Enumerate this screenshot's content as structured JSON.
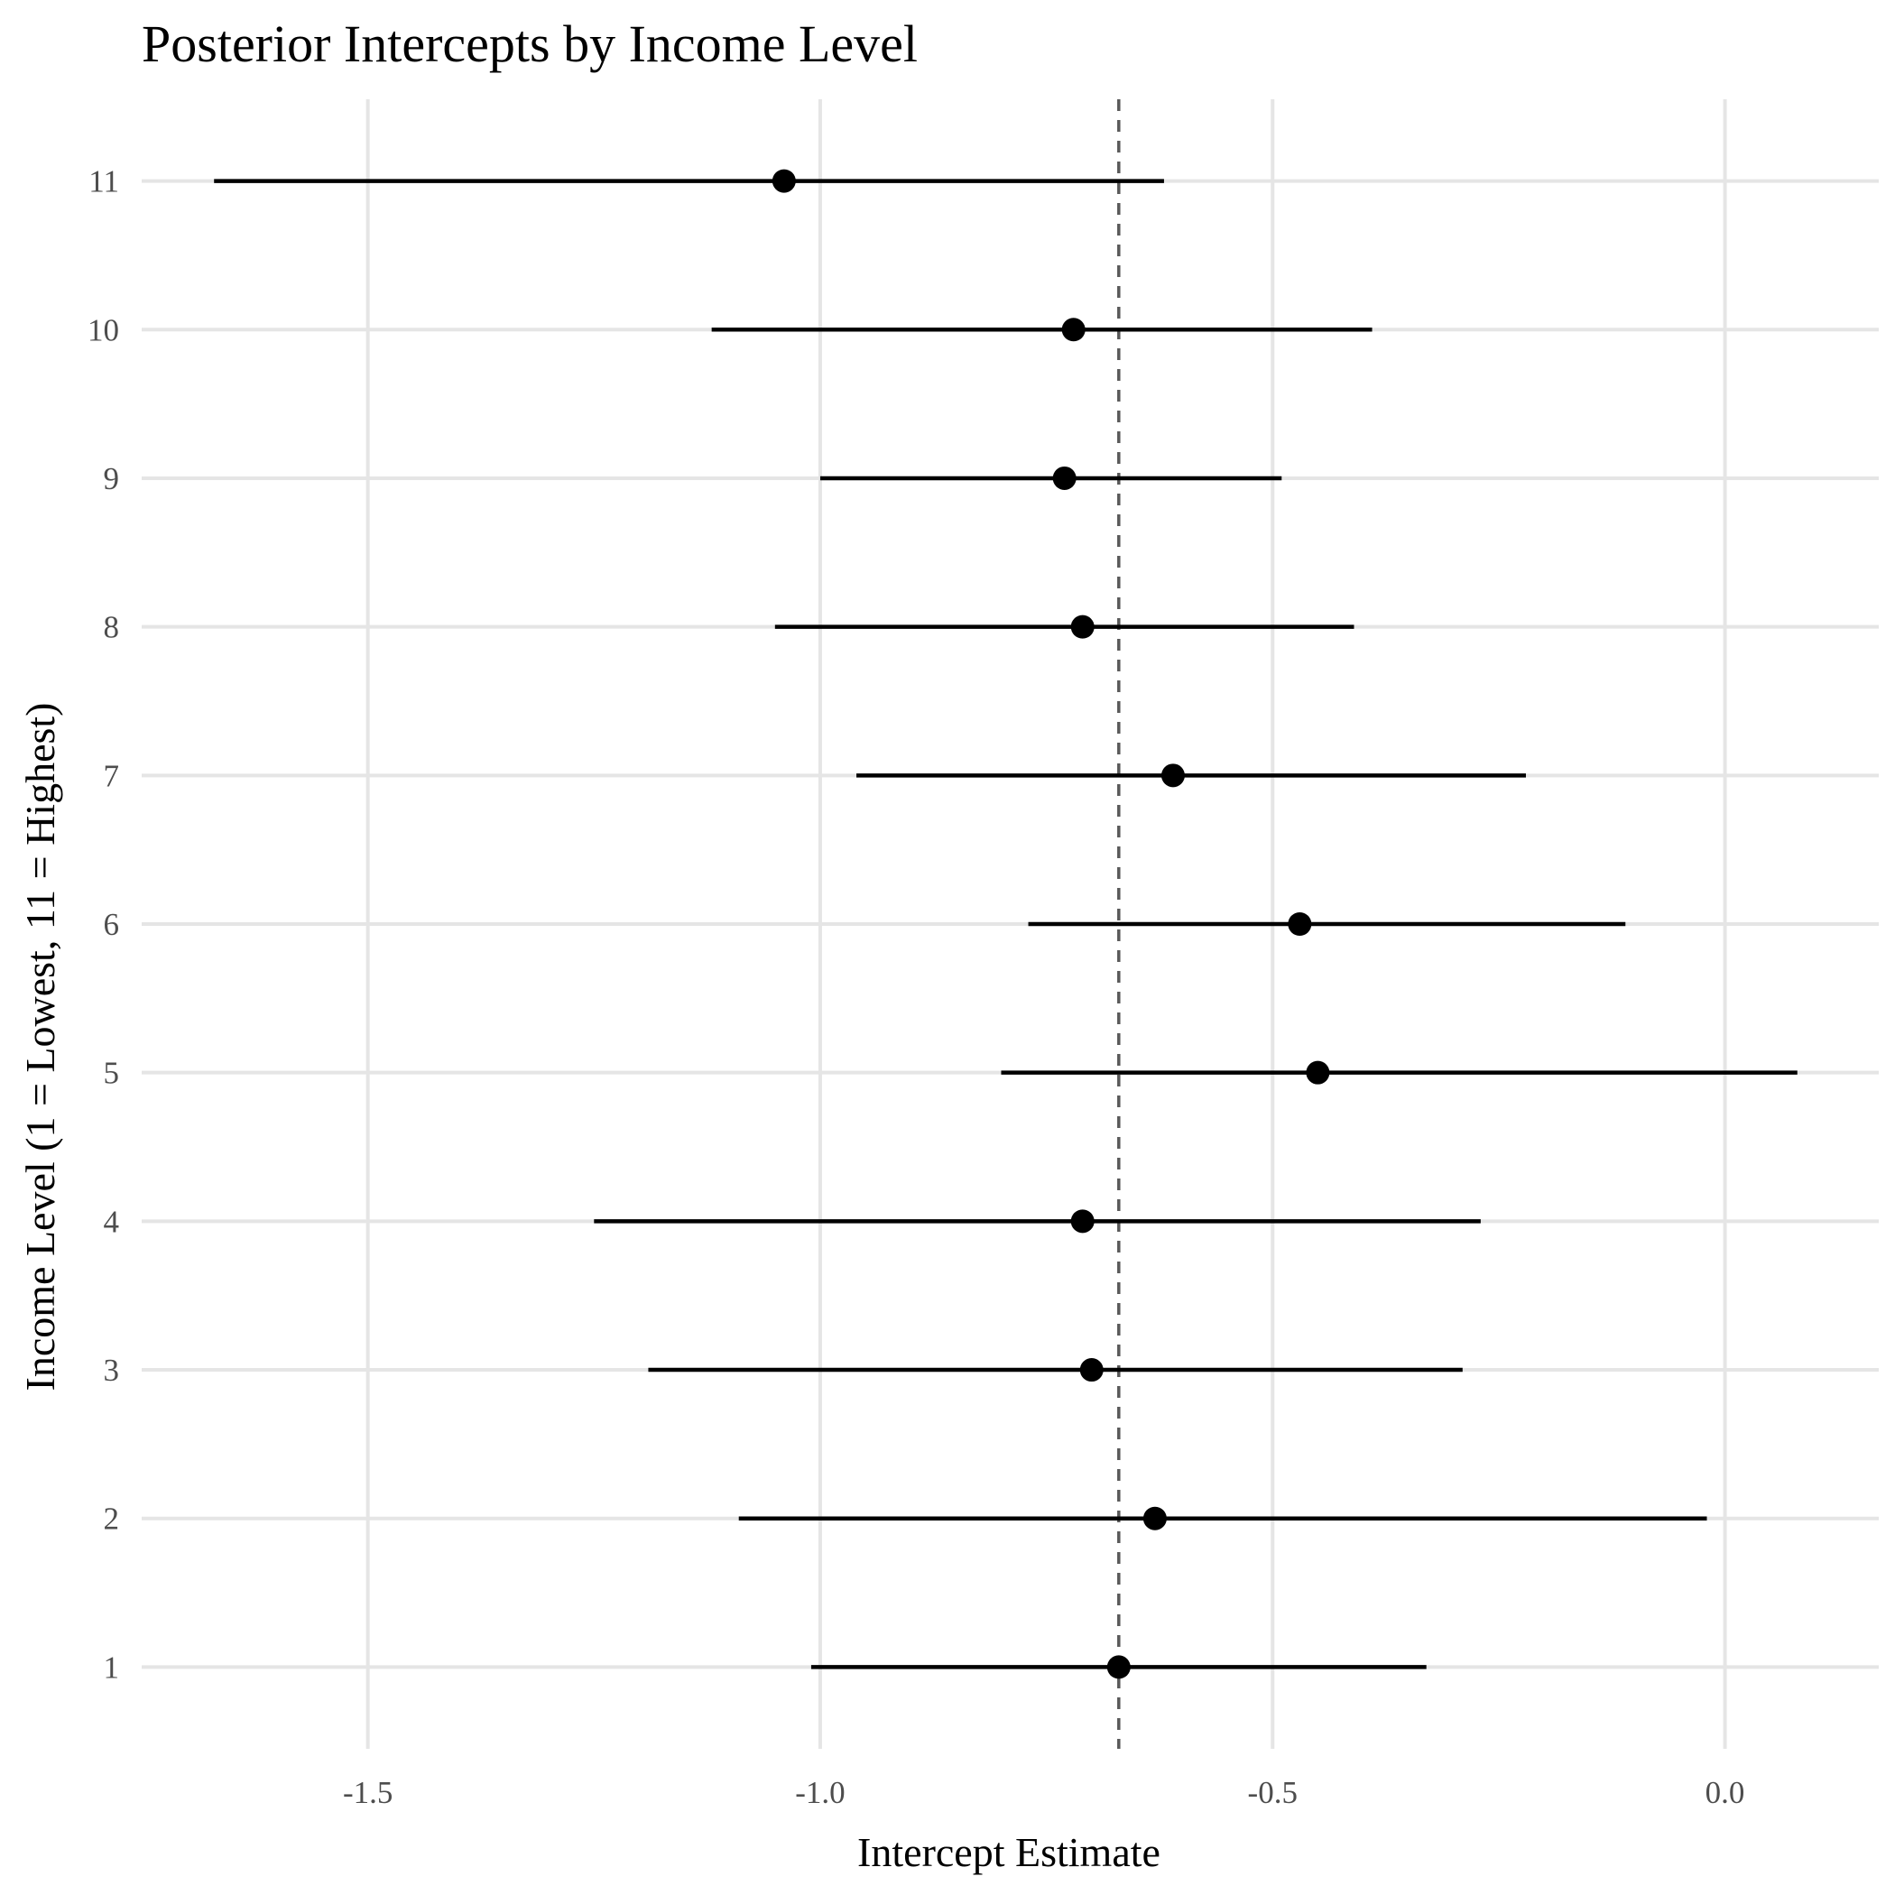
{
  "chart_data": {
    "type": "pointrange",
    "title": "Posterior Intercepts by Income Level",
    "xlabel": "Intercept Estimate",
    "ylabel": "Income Level (1 = Lowest, 11 = Highest)",
    "xlim": [
      -1.75,
      0.17
    ],
    "ylim": [
      0.45,
      11.55
    ],
    "x_ticks": [
      -1.5,
      -1.0,
      -0.5,
      0.0
    ],
    "x_tick_labels": [
      "-1.5",
      "-1.0",
      "-0.5",
      "0.0"
    ],
    "y_categories": [
      "1",
      "2",
      "3",
      "4",
      "5",
      "6",
      "7",
      "8",
      "9",
      "10",
      "11"
    ],
    "reference_line": {
      "x": -0.67,
      "style": "dashed"
    },
    "points": [
      {
        "level": 1,
        "estimate": -0.67,
        "lower": -1.01,
        "upper": -0.33
      },
      {
        "level": 2,
        "estimate": -0.63,
        "lower": -1.09,
        "upper": -0.02
      },
      {
        "level": 3,
        "estimate": -0.7,
        "lower": -1.19,
        "upper": -0.29
      },
      {
        "level": 4,
        "estimate": -0.71,
        "lower": -1.25,
        "upper": -0.27
      },
      {
        "level": 5,
        "estimate": -0.45,
        "lower": -0.8,
        "upper": 0.08
      },
      {
        "level": 6,
        "estimate": -0.47,
        "lower": -0.77,
        "upper": -0.11
      },
      {
        "level": 7,
        "estimate": -0.61,
        "lower": -0.96,
        "upper": -0.22
      },
      {
        "level": 8,
        "estimate": -0.71,
        "lower": -1.05,
        "upper": -0.41
      },
      {
        "level": 9,
        "estimate": -0.73,
        "lower": -1.0,
        "upper": -0.49
      },
      {
        "level": 10,
        "estimate": -0.72,
        "lower": -1.12,
        "upper": -0.39
      },
      {
        "level": 11,
        "estimate": -1.04,
        "lower": -1.67,
        "upper": -0.62
      }
    ],
    "grid": {
      "major": true,
      "minor": false
    }
  }
}
